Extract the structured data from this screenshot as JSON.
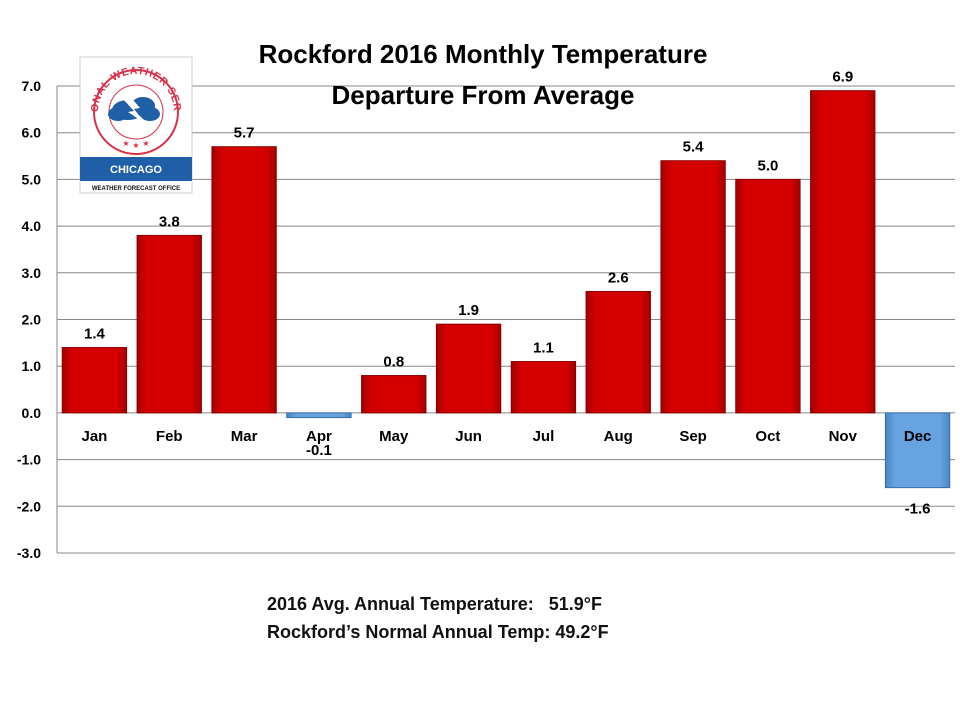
{
  "chart_data": {
    "type": "bar",
    "title": "Rockford 2016 Monthly Temperature",
    "subtitle": "Departure From Average",
    "categories": [
      "Jan",
      "Feb",
      "Mar",
      "Apr",
      "May",
      "Jun",
      "Jul",
      "Aug",
      "Sep",
      "Oct",
      "Nov",
      "Dec"
    ],
    "values": [
      1.4,
      3.8,
      5.7,
      -0.1,
      0.8,
      1.9,
      1.1,
      2.6,
      5.4,
      5.0,
      6.9,
      -1.6
    ],
    "data_labels": [
      "1.4",
      "3.8",
      "5.7",
      "-0.1",
      "0.8",
      "1.9",
      "1.1",
      "2.6",
      "5.4",
      "5.0",
      "6.9",
      "-1.6"
    ],
    "ylim": [
      -3.0,
      7.0
    ],
    "yticks": [
      7.0,
      6.0,
      5.0,
      4.0,
      3.0,
      2.0,
      1.0,
      0.0,
      -1.0,
      -2.0,
      -3.0
    ],
    "ytick_labels": [
      "7.0",
      "6.0",
      "5.0",
      "4.0",
      "3.0",
      "2.0",
      "1.0",
      "0.0",
      "-1.0",
      "-2.0",
      "-3.0"
    ],
    "xlabel": "",
    "ylabel": "",
    "grid": true,
    "colors": {
      "positive": "#cc0000",
      "negative": "#5b9bd5",
      "grid": "#888888"
    }
  },
  "logo": {
    "arc_text": "NATIONAL WEATHER SERVICE",
    "office": "CHICAGO",
    "subtext": "WEATHER FORECAST OFFICE",
    "colors": {
      "ring": "#d6304a",
      "band": "#1f5fa8"
    }
  },
  "footnotes": {
    "line1": "2016 Avg. Annual Temperature:   51.9°F",
    "line2": "Rockford’s Normal Annual Temp: 49.2°F"
  }
}
